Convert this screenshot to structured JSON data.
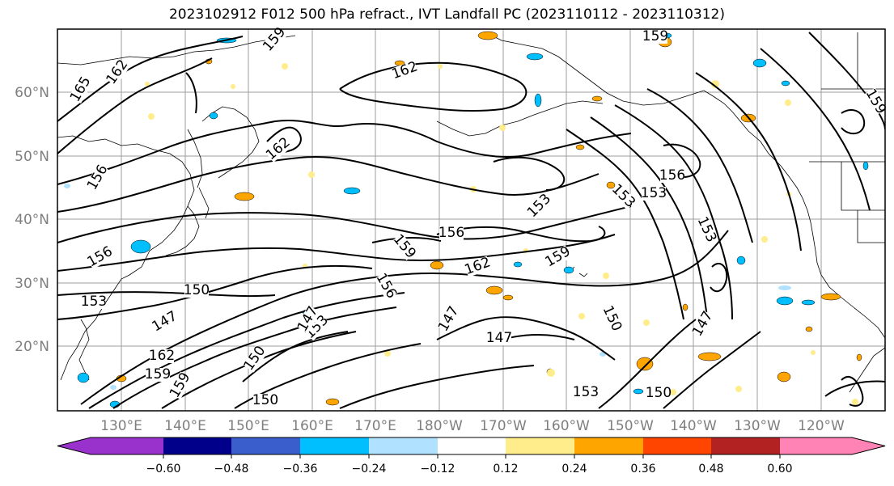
{
  "title": "2023102912 F012 500 hPa refract., IVT Landfall PC (2023110112 - 2023110312)",
  "lat_labels": [
    "60°N",
    "50°N",
    "40°N",
    "30°N",
    "20°N"
  ],
  "lon_labels": [
    "130°E",
    "140°E",
    "150°E",
    "160°E",
    "170°E",
    "180°W",
    "170°W",
    "160°W",
    "150°W",
    "140°W",
    "130°W",
    "120°W"
  ],
  "colorbar": {
    "colors": [
      "#9932cc",
      "#00008b",
      "#3a5fcd",
      "#00bfff",
      "#b0e2ff",
      "#ffffff",
      "#ffec8b",
      "#ffa500",
      "#ff4500",
      "#b22222",
      "#ff83b4"
    ],
    "tick_labels": [
      "−0.60",
      "−0.48",
      "−0.36",
      "−0.24",
      "−0.12",
      "0.12",
      "0.24",
      "0.36",
      "0.48",
      "0.60"
    ]
  },
  "contour_labels": [
    "159",
    "162",
    "165",
    "162",
    "156",
    "159",
    "162",
    "156",
    "153",
    "156",
    "159",
    "162",
    "159",
    "153",
    "153",
    "156",
    "150",
    "153",
    "147",
    "150",
    "147",
    "153",
    "156",
    "147",
    "147",
    "159",
    "162",
    "159",
    "150",
    "147",
    "153",
    "150",
    "159",
    "153",
    "150"
  ],
  "colors": {
    "orange": "#ffa500",
    "yellow": "#ffec8b",
    "blue": "#00bfff",
    "lightblue": "#b0e2ff",
    "grid": "#9e9e9e"
  }
}
